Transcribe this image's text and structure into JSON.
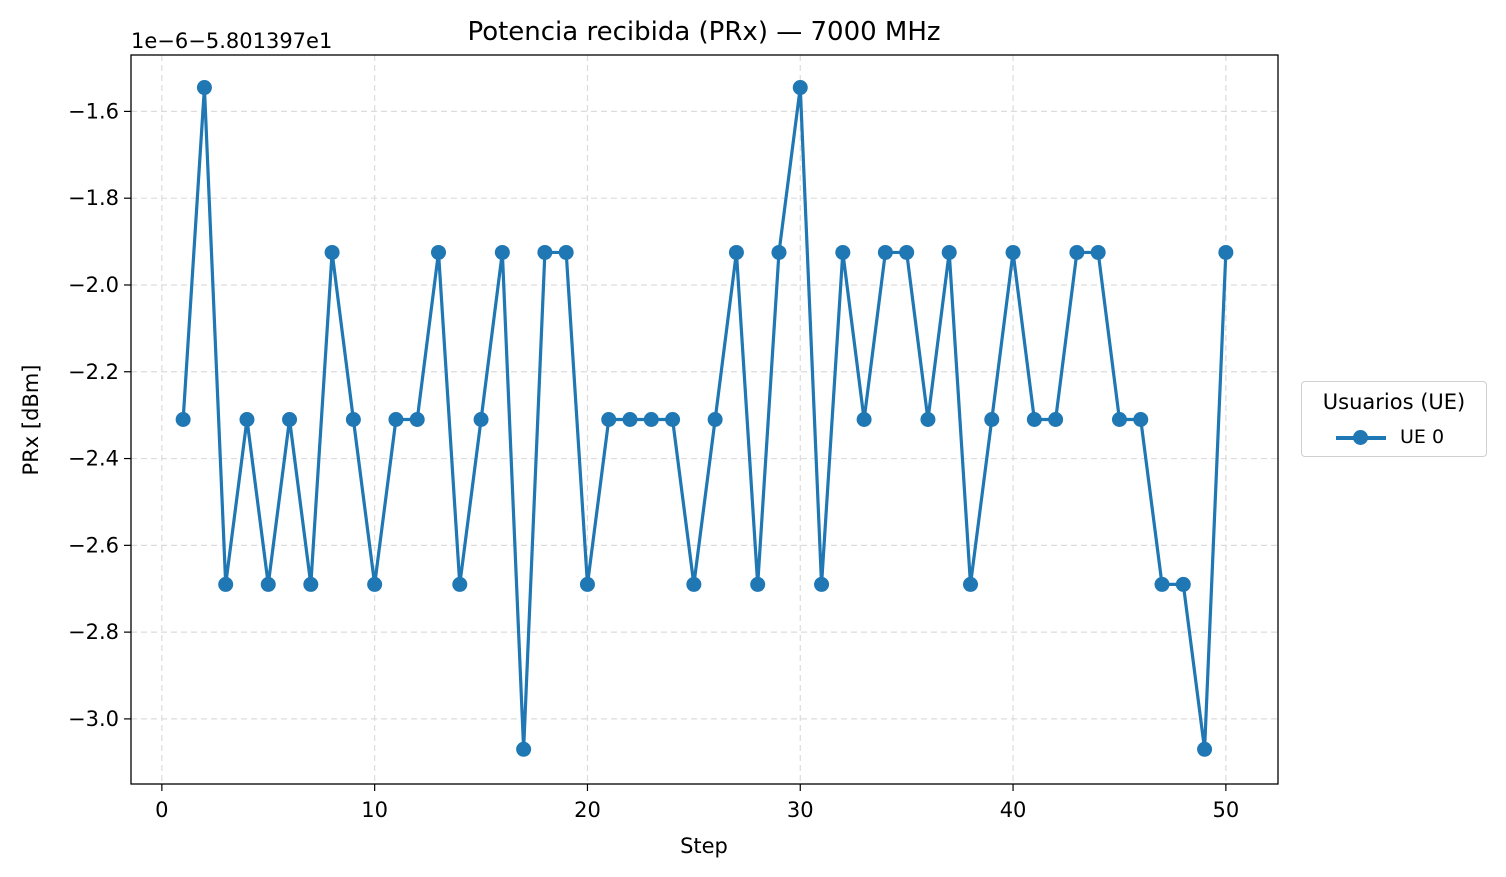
{
  "chart_data": {
    "type": "line",
    "title": "Potencia recibida (PRx) — 7000 MHz",
    "xlabel": "Step",
    "ylabel": "PRx [dBm]",
    "offset_text": "1e−6−5.801397e1",
    "xlim": [
      -1.45,
      52.45
    ],
    "ylim": [
      -3.15,
      -1.47
    ],
    "xticks": [
      0,
      10,
      20,
      30,
      40,
      50
    ],
    "yticks": [
      -1.6,
      -1.8,
      -2.0,
      -2.2,
      -2.4,
      -2.6,
      -2.8,
      -3.0
    ],
    "ytick_labels": [
      "−1.6",
      "−1.8",
      "−2.0",
      "−2.2",
      "−2.4",
      "−2.6",
      "−2.8",
      "−3.0"
    ],
    "grid": true,
    "legend_title": "Usuarios (UE)",
    "legend_position": "outside-right",
    "series": [
      {
        "name": "UE 0",
        "color": "#1f77b4",
        "marker": "circle",
        "x": [
          1,
          2,
          3,
          4,
          5,
          6,
          7,
          8,
          9,
          10,
          11,
          12,
          13,
          14,
          15,
          16,
          17,
          18,
          19,
          20,
          21,
          22,
          23,
          24,
          25,
          26,
          27,
          28,
          29,
          30,
          31,
          32,
          33,
          34,
          35,
          36,
          37,
          38,
          39,
          40,
          41,
          42,
          43,
          44,
          45,
          46,
          47,
          48,
          49,
          50
        ],
        "y": [
          -2.31,
          -1.545,
          -2.69,
          -2.31,
          -2.69,
          -2.31,
          -2.69,
          -1.925,
          -2.31,
          -2.69,
          -2.31,
          -2.31,
          -1.925,
          -2.69,
          -2.31,
          -1.925,
          -3.07,
          -1.925,
          -1.925,
          -2.69,
          -2.31,
          -2.31,
          -2.31,
          -2.31,
          -2.69,
          -2.31,
          -1.925,
          -2.69,
          -1.925,
          -1.545,
          -2.69,
          -1.925,
          -2.31,
          -1.925,
          -1.925,
          -2.31,
          -1.925,
          -2.69,
          -2.31,
          -1.925,
          -2.31,
          -2.31,
          -1.925,
          -1.925,
          -2.31,
          -2.31,
          -2.69,
          -2.69,
          -3.07,
          -1.925
        ]
      }
    ]
  }
}
